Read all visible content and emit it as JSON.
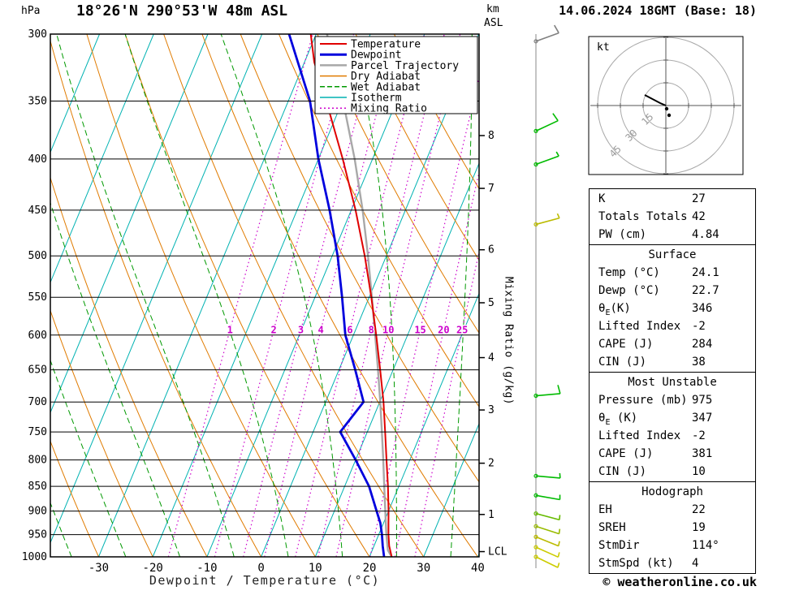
{
  "header": {
    "station": "18°26'N 290°53'W 48m ASL",
    "datetime": "14.06.2024 18GMT (Base: 18)",
    "left_axis_unit": "hPa",
    "km_label": "km",
    "asl_label": "ASL"
  },
  "legend": {
    "items": [
      {
        "label": "Temperature",
        "color": "#e00000",
        "width": 2,
        "dash": ""
      },
      {
        "label": "Dewpoint",
        "color": "#0000dd",
        "width": 3,
        "dash": ""
      },
      {
        "label": "Parcel Trajectory",
        "color": "#a8a8a8",
        "width": 2.5,
        "dash": ""
      },
      {
        "label": "Dry Adiabat",
        "color": "#e07b00",
        "width": 1.5,
        "dash": ""
      },
      {
        "label": "Wet Adiabat",
        "color": "#009900",
        "width": 1.5,
        "dash": "6,3"
      },
      {
        "label": "Isotherm",
        "color": "#00b2b2",
        "width": 1.5,
        "dash": ""
      },
      {
        "label": "Mixing Ratio",
        "color": "#cc00cc",
        "width": 1.5,
        "dash": "2,3"
      }
    ]
  },
  "chart_data": {
    "type": "skewt-log-p-sounding",
    "pressure_axis_unit": "hPa",
    "pressure_ticks": [
      300,
      350,
      400,
      450,
      500,
      550,
      600,
      650,
      700,
      750,
      800,
      850,
      900,
      950,
      1000
    ],
    "temp_ticks": [
      -30,
      -20,
      -10,
      0,
      10,
      20,
      30,
      40
    ],
    "temp_axis_label": "Dewpoint / Temperature (°C)",
    "mixing_axis_label": "Mixing Ratio (g/kg)",
    "km_ticks": [
      {
        "km": 1,
        "p": 907
      },
      {
        "km": 2,
        "p": 806
      },
      {
        "km": 3,
        "p": 713
      },
      {
        "km": 4,
        "p": 632
      },
      {
        "km": 5,
        "p": 557
      },
      {
        "km": 6,
        "p": 493
      },
      {
        "km": 7,
        "p": 428
      },
      {
        "km": 8,
        "p": 379
      }
    ],
    "lcl": {
      "label": "LCL",
      "p": 988
    },
    "isotherms": {
      "start": -80,
      "end": 40,
      "step": 10
    },
    "dry_adiabats": {
      "start": -40,
      "end": 90,
      "step": 10
    },
    "wet_adiabats": {
      "start": -35,
      "end": 35,
      "step": 10
    },
    "mixing_ratios": [
      1,
      2,
      3,
      4,
      6,
      8,
      10,
      15,
      20,
      25
    ],
    "temperature_profile": [
      [
        1000,
        24.1
      ],
      [
        975,
        22.8
      ],
      [
        950,
        21.8
      ],
      [
        925,
        20.9
      ],
      [
        900,
        20.0
      ],
      [
        850,
        18.0
      ],
      [
        800,
        15.7
      ],
      [
        750,
        13.3
      ],
      [
        700,
        10.7
      ],
      [
        650,
        7.6
      ],
      [
        600,
        4.2
      ],
      [
        550,
        0.4
      ],
      [
        500,
        -4.0
      ],
      [
        450,
        -9.2
      ],
      [
        400,
        -15.5
      ],
      [
        350,
        -23.0
      ],
      [
        320,
        -28.2
      ],
      [
        300,
        -31.0
      ]
    ],
    "dewpoint_profile": [
      [
        1000,
        22.7
      ],
      [
        975,
        21.6
      ],
      [
        950,
        20.6
      ],
      [
        925,
        19.4
      ],
      [
        900,
        17.8
      ],
      [
        850,
        14.5
      ],
      [
        800,
        10.0
      ],
      [
        750,
        5.0
      ],
      [
        700,
        7.0
      ],
      [
        650,
        3.0
      ],
      [
        600,
        -1.5
      ],
      [
        550,
        -5.0
      ],
      [
        500,
        -9.0
      ],
      [
        450,
        -14.0
      ],
      [
        400,
        -20.0
      ],
      [
        350,
        -26.0
      ],
      [
        300,
        -35.0
      ]
    ],
    "parcel_profile": [
      [
        1000,
        24.1
      ],
      [
        985,
        22.9
      ],
      [
        950,
        21.4
      ],
      [
        900,
        19.4
      ],
      [
        850,
        17.3
      ],
      [
        800,
        15.1
      ],
      [
        750,
        12.7
      ],
      [
        700,
        10.1
      ],
      [
        650,
        7.2
      ],
      [
        600,
        4.0
      ],
      [
        550,
        0.5
      ],
      [
        500,
        -3.4
      ],
      [
        450,
        -7.9
      ],
      [
        400,
        -13.3
      ],
      [
        350,
        -19.9
      ],
      [
        300,
        -28.0
      ]
    ],
    "wind_barbs": [
      {
        "p": 305,
        "dir": 70,
        "spd": 10,
        "color": "#808080"
      },
      {
        "p": 375,
        "dir": 65,
        "spd": 10,
        "color": "#00bb00"
      },
      {
        "p": 405,
        "dir": 70,
        "spd": 5,
        "color": "#00bb00"
      },
      {
        "p": 465,
        "dir": 75,
        "spd": 5,
        "color": "#bbbb00"
      },
      {
        "p": 690,
        "dir": 85,
        "spd": 10,
        "color": "#00bb00"
      },
      {
        "p": 830,
        "dir": 95,
        "spd": 5,
        "color": "#00bb00"
      },
      {
        "p": 868,
        "dir": 100,
        "spd": 5,
        "color": "#00bb00"
      },
      {
        "p": 905,
        "dir": 105,
        "spd": 5,
        "color": "#66bb00"
      },
      {
        "p": 932,
        "dir": 108,
        "spd": 5,
        "color": "#99bb00"
      },
      {
        "p": 955,
        "dir": 112,
        "spd": 5,
        "color": "#bbbb00"
      },
      {
        "p": 978,
        "dir": 114,
        "spd": 4,
        "color": "#cccc00"
      },
      {
        "p": 1000,
        "dir": 116,
        "spd": 4,
        "color": "#cccc00"
      }
    ],
    "colors": {
      "temperature": "#e00000",
      "dewpoint": "#0000dd",
      "parcel": "#a8a8a8",
      "dry_adiabat": "#e07b00",
      "wet_adiabat": "#009900",
      "isotherm": "#00b2b2",
      "mixing_ratio": "#cc00cc",
      "grid": "#000000"
    }
  },
  "hodograph": {
    "unit_label": "kt",
    "rings": [
      15,
      30,
      45
    ],
    "trace": [
      [
        -26,
        -13
      ],
      [
        -7,
        -3
      ],
      [
        0,
        0
      ]
    ],
    "dots": [
      [
        1,
        4
      ],
      [
        4,
        12
      ]
    ]
  },
  "stats": {
    "sections": [
      {
        "title": null,
        "rows": [
          [
            "K",
            "27"
          ],
          [
            "Totals Totals",
            "42"
          ],
          [
            "PW (cm)",
            "4.84"
          ]
        ]
      },
      {
        "title": "Surface",
        "rows": [
          [
            "Temp (°C)",
            "24.1"
          ],
          [
            "Dewp (°C)",
            "22.7"
          ],
          [
            {
              "pre": "θ",
              "sub": "E",
              "post": "(K)"
            },
            "346"
          ],
          [
            "Lifted Index",
            "-2"
          ],
          [
            "CAPE (J)",
            "284"
          ],
          [
            "CIN (J)",
            "38"
          ]
        ]
      },
      {
        "title": "Most Unstable",
        "rows": [
          [
            "Pressure (mb)",
            "975"
          ],
          [
            {
              "pre": "θ",
              "sub": "E",
              "post": " (K)"
            },
            "347"
          ],
          [
            "Lifted Index",
            "-2"
          ],
          [
            "CAPE (J)",
            "381"
          ],
          [
            "CIN (J)",
            "10"
          ]
        ]
      },
      {
        "title": "Hodograph",
        "rows": [
          [
            "EH",
            "22"
          ],
          [
            "SREH",
            "19"
          ],
          [
            "StmDir",
            "114°"
          ],
          [
            "StmSpd (kt)",
            "4"
          ]
        ]
      }
    ]
  },
  "footer": {
    "copyright": "© weatheronline.co.uk"
  }
}
